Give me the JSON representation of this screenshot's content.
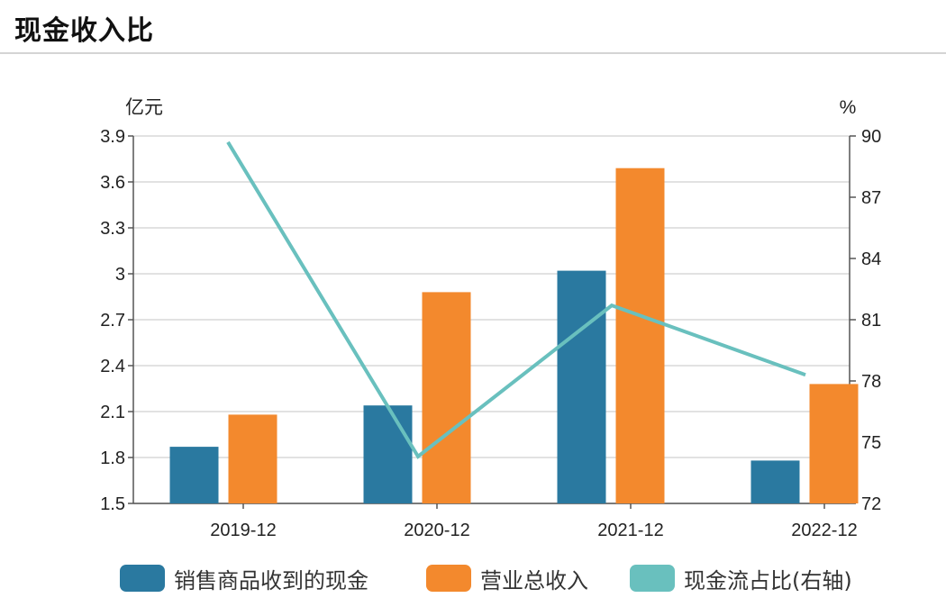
{
  "header": {
    "title": "现金收入比"
  },
  "chart_data": {
    "type": "bar",
    "categories": [
      "2019-12",
      "2020-12",
      "2021-12",
      "2022-12"
    ],
    "series": [
      {
        "name": "销售商品收到的现金",
        "kind": "bar",
        "axis": "left",
        "color": "#2a79a0",
        "values": [
          1.87,
          2.14,
          3.02,
          1.78
        ]
      },
      {
        "name": "营业总收入",
        "kind": "bar",
        "axis": "left",
        "color": "#f3892d",
        "values": [
          2.08,
          2.88,
          3.69,
          2.28
        ]
      },
      {
        "name": "现金流占比(右轴)",
        "kind": "line",
        "axis": "right",
        "color": "#69c0be",
        "values": [
          89.7,
          74.3,
          81.7,
          78.3
        ]
      }
    ],
    "left_axis": {
      "unit": "亿元",
      "min": 1.5,
      "max": 3.9,
      "ticks": [
        "3.9",
        "3.6",
        "3.3",
        "3",
        "2.7",
        "2.4",
        "2.1",
        "1.8",
        "1.5"
      ]
    },
    "right_axis": {
      "unit": "%",
      "min": 72,
      "max": 90,
      "ticks": [
        "90",
        "87",
        "84",
        "81",
        "78",
        "75",
        "72"
      ]
    },
    "grid": true,
    "legend_position": "bottom"
  }
}
